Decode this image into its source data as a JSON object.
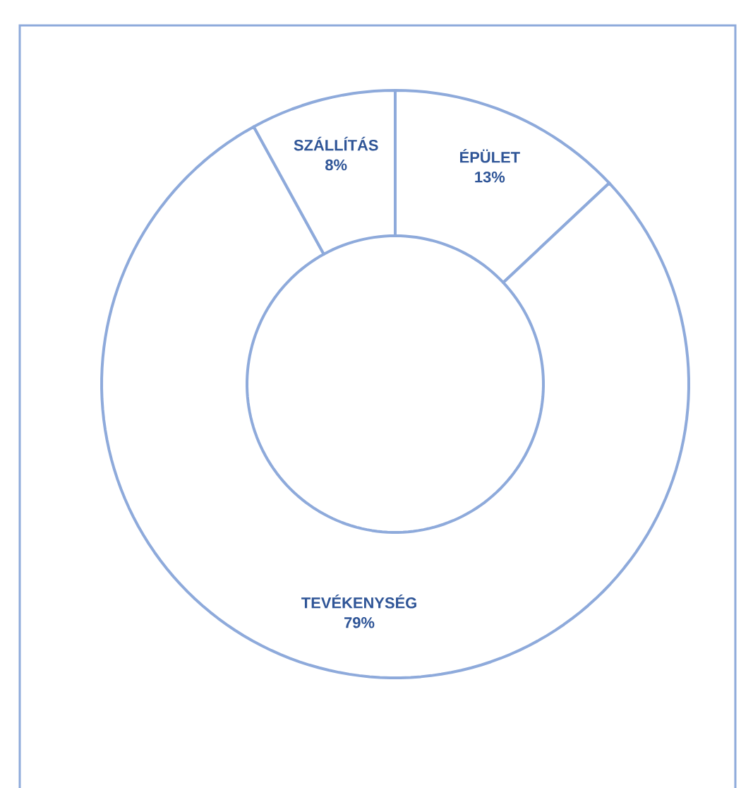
{
  "chart_data": {
    "type": "donut",
    "categories": [
      "ÉPÜLET",
      "TEVÉKENYSÉG",
      "SZÁLLÍTÁS"
    ],
    "values": [
      13,
      79,
      8
    ],
    "colors": [
      "#ffffff",
      "#ffffff",
      "#ffffff"
    ],
    "value_labels": [
      "13%",
      "79%",
      "8%"
    ]
  }
}
